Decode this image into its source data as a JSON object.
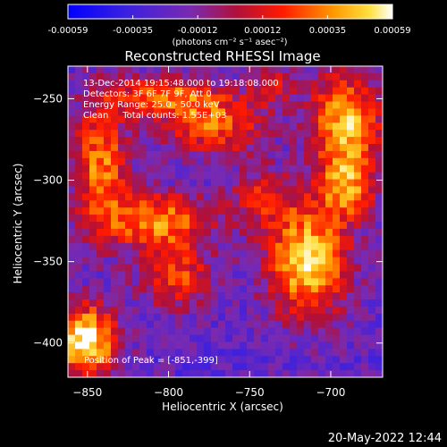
{
  "chart_data": {
    "type": "heatmap",
    "title": "Reconstructed RHESSI Image",
    "xlabel": "Heliocentric X (arcsec)",
    "ylabel": "Heliocentric Y (arcsec)",
    "xlim": [
      -862,
      -668
    ],
    "ylim": [
      -421,
      -230
    ],
    "x_ticks": [
      -850,
      -800,
      -750,
      -700
    ],
    "y_ticks": [
      -250,
      -300,
      -350,
      -400
    ],
    "colorbar": {
      "range": [
        -0.00059,
        0.00059
      ],
      "ticks": [
        "-0.00059",
        "-0.00035",
        "-0.00012",
        "0.00012",
        "0.00035",
        "0.00059"
      ],
      "label": "(photons cm⁻² s⁻¹ asec⁻²)"
    },
    "info_lines": [
      "13-Dec-2014 19:15:48.000 to 19:18:08.000",
      "Detectors: 3F 6F 7F 9F, Att 0",
      "Energy Range: 25.0 - 50.0 keV",
      "Clean     Total counts: 1.55E+03"
    ],
    "peak_text": "Position of Peak = [-851,-399]",
    "peak": [
      -851,
      -399
    ],
    "sources": [
      {
        "x": -851,
        "y": -399,
        "sx": 14,
        "sy": 16,
        "amp": 1.0
      },
      {
        "x": -714,
        "y": -349,
        "sx": 18,
        "sy": 24,
        "amp": 0.92
      },
      {
        "x": -690,
        "y": -265,
        "sx": 16,
        "sy": 22,
        "amp": 0.82
      },
      {
        "x": -690,
        "y": -305,
        "sx": 12,
        "sy": 14,
        "amp": 0.6
      },
      {
        "x": -806,
        "y": -325,
        "sx": 24,
        "sy": 12,
        "amp": 0.72
      },
      {
        "x": -795,
        "y": -360,
        "sx": 16,
        "sy": 14,
        "amp": 0.55
      },
      {
        "x": -842,
        "y": -290,
        "sx": 12,
        "sy": 28,
        "amp": 0.68
      },
      {
        "x": -772,
        "y": -265,
        "sx": 22,
        "sy": 14,
        "amp": 0.62
      },
      {
        "x": -805,
        "y": -248,
        "sx": 22,
        "sy": 9,
        "amp": 0.58
      },
      {
        "x": -742,
        "y": -310,
        "sx": 14,
        "sy": 12,
        "amp": 0.42
      },
      {
        "x": -735,
        "y": -240,
        "sx": 10,
        "sy": 10,
        "amp": 0.35
      }
    ]
  },
  "footer": {
    "timestamp": "20-May-2022 12:44"
  }
}
